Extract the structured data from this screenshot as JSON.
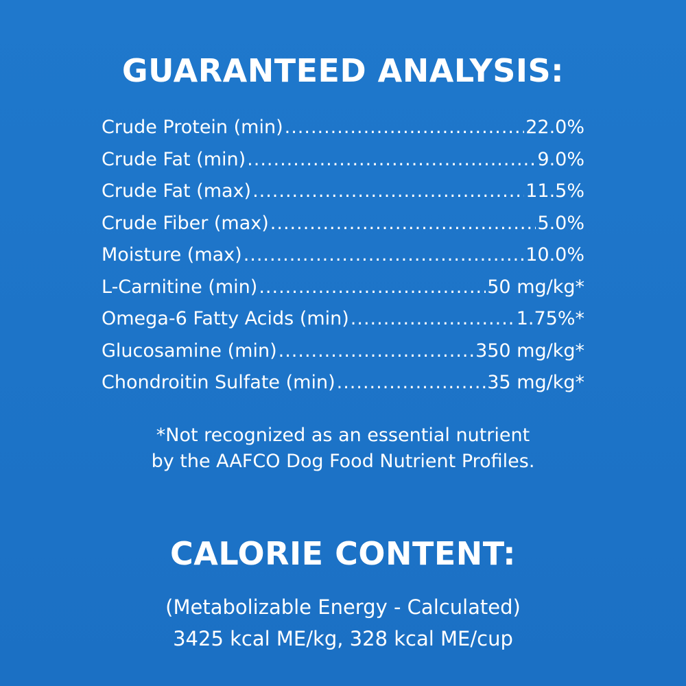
{
  "colors": {
    "background": "#1e73c8",
    "text": "#ffffff"
  },
  "guaranteed_analysis": {
    "title": "GUARANTEED ANALYSIS:",
    "rows": [
      {
        "name": "Crude Protein (min)",
        "value": "22.0%"
      },
      {
        "name": "Crude Fat (min)",
        "value": "9.0%"
      },
      {
        "name": "Crude Fat (max)",
        "value": "11.5%"
      },
      {
        "name": "Crude Fiber (max)",
        "value": "5.0%"
      },
      {
        "name": "Moisture (max)",
        "value": "10.0%"
      },
      {
        "name": "L-Carnitine (min)",
        "value": "50 mg/kg*"
      },
      {
        "name": "Omega-6 Fatty Acids (min)",
        "value": "1.75%*"
      },
      {
        "name": "Glucosamine (min)",
        "value": "350 mg/kg*"
      },
      {
        "name": "Chondroitin Sulfate (min)",
        "value": "35 mg/kg*"
      }
    ],
    "footnote_line1": "*Not recognized as an essential nutrient",
    "footnote_line2": "by the AAFCO Dog Food Nutrient Profiles."
  },
  "calorie_content": {
    "title": "CALORIE CONTENT:",
    "line1": "(Metabolizable Energy - Calculated)",
    "line2": "3425 kcal ME/kg, 328 kcal ME/cup"
  }
}
